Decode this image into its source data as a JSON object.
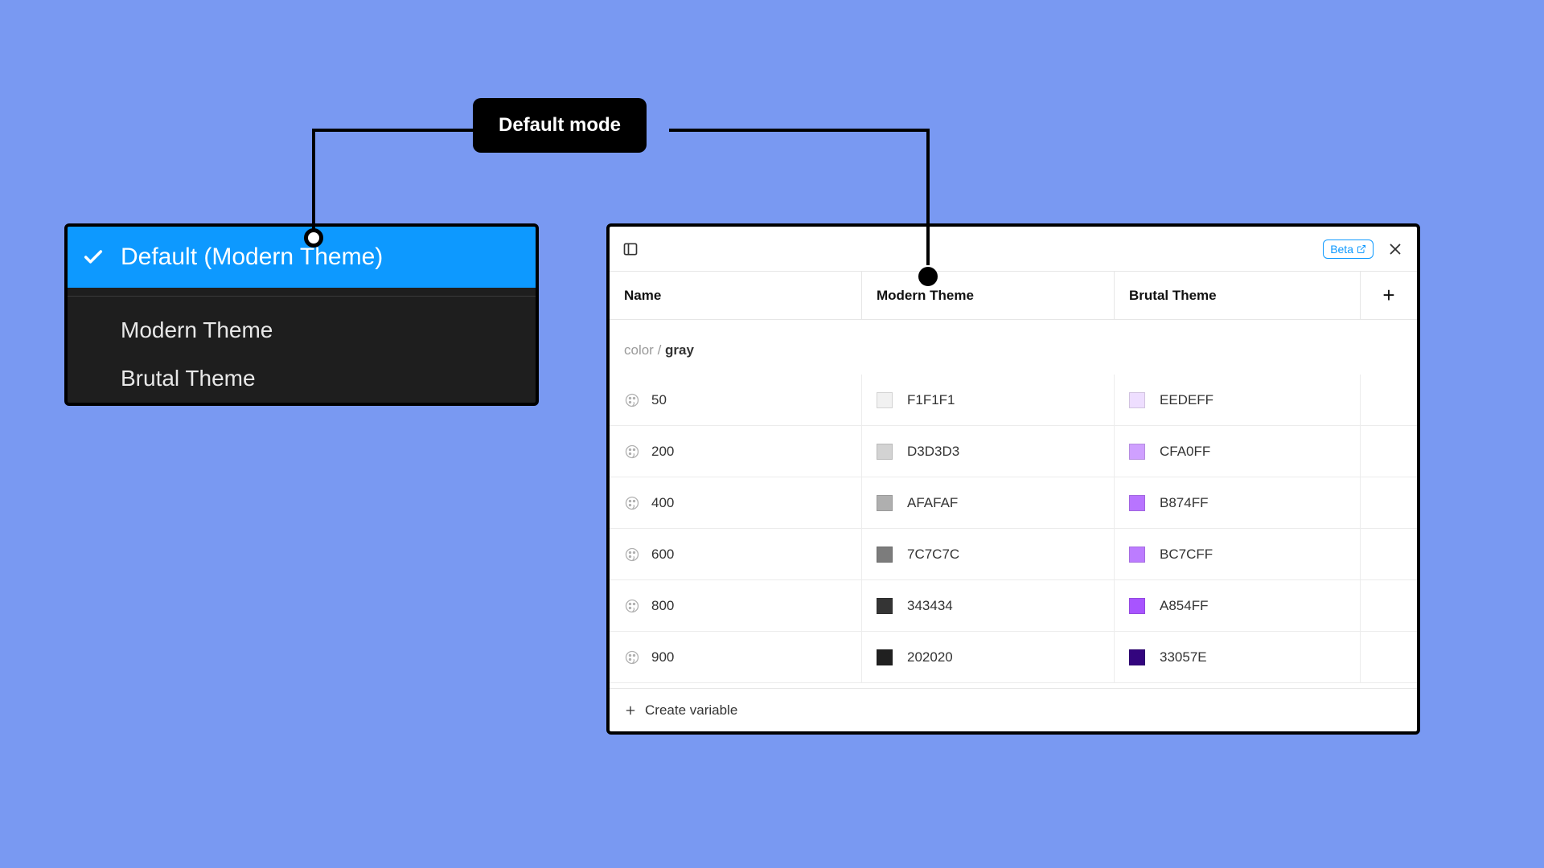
{
  "callout": {
    "label": "Default mode"
  },
  "dropdown": {
    "selected_label": "Default (Modern Theme)",
    "options": [
      "Modern Theme",
      "Brutal Theme"
    ],
    "selected_bg": "#0d99ff",
    "panel_bg": "#1e1e1e"
  },
  "panel": {
    "beta_label": "Beta",
    "header": {
      "name": "Name",
      "theme1": "Modern Theme",
      "theme2": "Brutal Theme"
    },
    "group": {
      "prefix": "color / ",
      "name": "gray"
    },
    "rows": [
      {
        "name": "50",
        "modern": {
          "hex": "F1F1F1",
          "swatch": "#f1f1f1"
        },
        "brutal": {
          "hex": "EEDEFF",
          "swatch": "#eedeff"
        }
      },
      {
        "name": "200",
        "modern": {
          "hex": "D3D3D3",
          "swatch": "#d3d3d3"
        },
        "brutal": {
          "hex": "CFA0FF",
          "swatch": "#cfa0ff"
        }
      },
      {
        "name": "400",
        "modern": {
          "hex": "AFAFAF",
          "swatch": "#afafaf"
        },
        "brutal": {
          "hex": "B874FF",
          "swatch": "#b874ff"
        }
      },
      {
        "name": "600",
        "modern": {
          "hex": "7C7C7C",
          "swatch": "#7c7c7c"
        },
        "brutal": {
          "hex": "BC7CFF",
          "swatch": "#bc7cff"
        }
      },
      {
        "name": "800",
        "modern": {
          "hex": "343434",
          "swatch": "#343434"
        },
        "brutal": {
          "hex": "A854FF",
          "swatch": "#a854ff"
        }
      },
      {
        "name": "900",
        "modern": {
          "hex": "202020",
          "swatch": "#202020"
        },
        "brutal": {
          "hex": "33057E",
          "swatch": "#33057e"
        }
      }
    ],
    "footer": {
      "label": "Create variable"
    }
  },
  "layout": {
    "canvas_bg": "#7999f2",
    "panel_border": "#000000"
  }
}
